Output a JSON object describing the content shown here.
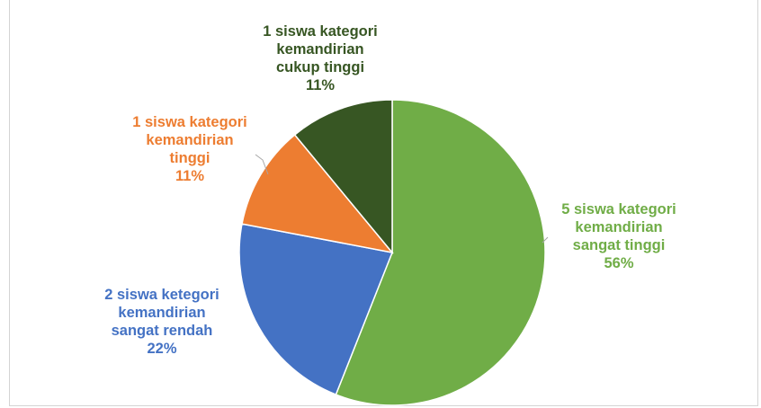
{
  "chart_data": {
    "type": "pie",
    "slices": [
      {
        "lines": [
          "5 siswa kategori",
          "kemandirian",
          "sangat tinggi",
          "56%"
        ],
        "percent": 56,
        "count": 5,
        "color": "#70ad47",
        "label_color": "#70ad47"
      },
      {
        "lines": [
          "2 siswa ketegori",
          "kemandirian",
          "sangat rendah",
          "22%"
        ],
        "percent": 22,
        "count": 2,
        "color": "#4472c4",
        "label_color": "#4472c4"
      },
      {
        "lines": [
          "1 siswa kategori",
          "kemandirian",
          "tinggi",
          "11%"
        ],
        "percent": 11,
        "count": 1,
        "color": "#ed7d31",
        "label_color": "#ed7d31"
      },
      {
        "lines": [
          "1 siswa kategori",
          "kemandirian",
          "cukup tinggi",
          "11%"
        ],
        "percent": 11,
        "count": 1,
        "color": "#375623",
        "label_color": "#375623"
      }
    ],
    "start_angle": "12 o'clock",
    "direction": "clockwise"
  }
}
